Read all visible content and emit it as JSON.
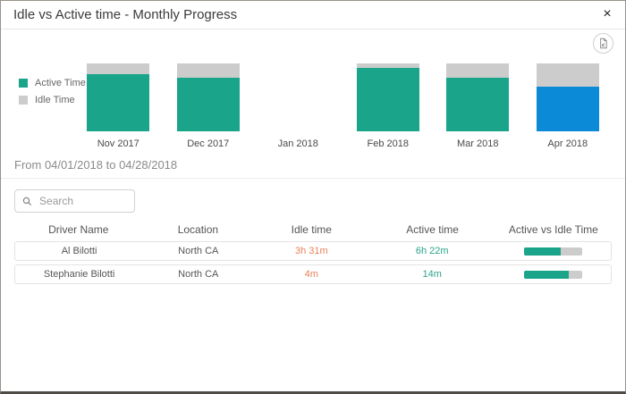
{
  "dialog": {
    "title": "Idle vs Active time - Monthly Progress",
    "close_glyph": "×"
  },
  "chart_data": {
    "type": "stacked-bar-100",
    "categories": [
      "Nov 2017",
      "Dec 2017",
      "Jan 2018",
      "Feb 2018",
      "Mar 2018",
      "Apr 2018"
    ],
    "series": [
      {
        "name": "Active Time",
        "values": [
          84,
          79,
          null,
          93,
          79,
          66
        ]
      },
      {
        "name": "Idle Time",
        "values": [
          16,
          21,
          null,
          7,
          21,
          34
        ]
      }
    ],
    "unit": "percent",
    "selected_category": "Apr 2018",
    "legend_position": "left",
    "colors": {
      "active": "#1aa58a",
      "idle": "#cccccc",
      "selected_active": "#0b8ad8"
    }
  },
  "date_range": {
    "text": "From 04/01/2018 to 04/28/2018"
  },
  "search": {
    "placeholder": "Search"
  },
  "table": {
    "columns": [
      "Driver Name",
      "Location",
      "Idle time",
      "Active time",
      "Active vs Idle Time"
    ],
    "rows": [
      {
        "driver_name": "Al Bilotti",
        "location": "North CA",
        "idle_time": "3h 31m",
        "active_time": "6h 22m",
        "active_pct": 64
      },
      {
        "driver_name": "Stephanie Bilotti",
        "location": "North CA",
        "idle_time": "4m",
        "active_time": "14m",
        "active_pct": 78
      }
    ],
    "colors": {
      "idle_text": "#e8835a",
      "active_text": "#2aa38b"
    }
  }
}
